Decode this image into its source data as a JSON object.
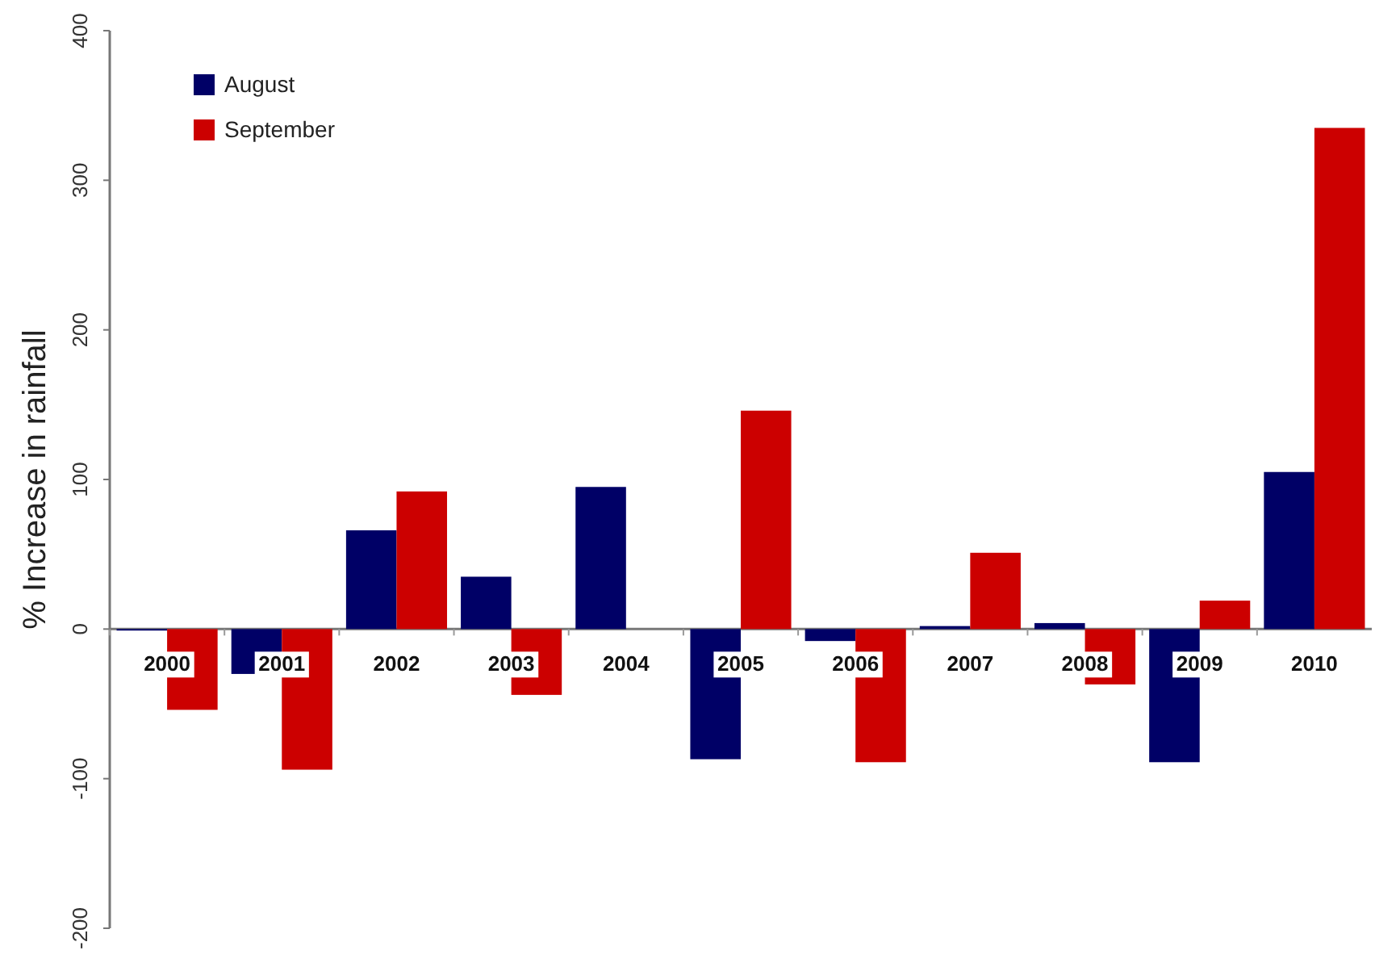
{
  "chart_data": {
    "type": "bar",
    "ylabel": "% Increase in rainfall",
    "categories": [
      "2000",
      "2001",
      "2002",
      "2003",
      "2004",
      "2005",
      "2006",
      "2007",
      "2008",
      "2009",
      "2010"
    ],
    "series": [
      {
        "name": "August",
        "color": "#000066",
        "values": [
          -1,
          -30,
          66,
          35,
          95,
          -87,
          -8,
          2,
          4,
          -89,
          105
        ]
      },
      {
        "name": "September",
        "color": "#cc0000",
        "values": [
          -54,
          -94,
          92,
          -44,
          0,
          146,
          -89,
          51,
          -37,
          19,
          335
        ]
      }
    ],
    "ylim": [
      -200,
      400
    ],
    "yticks": [
      -200,
      -100,
      0,
      100,
      200,
      300,
      400
    ],
    "grid": false,
    "legend": "top left"
  }
}
